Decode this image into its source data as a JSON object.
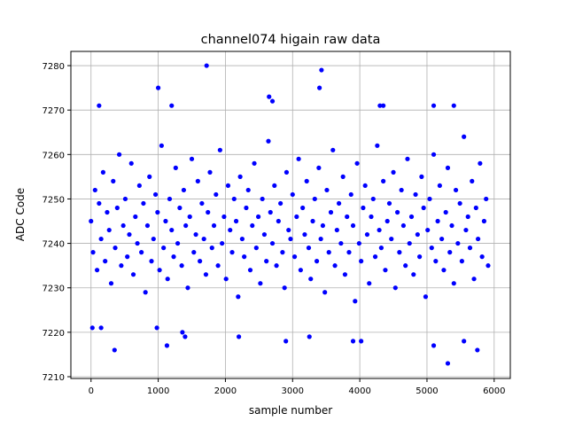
{
  "chart_data": {
    "type": "scatter",
    "title": "channel074 higain raw data",
    "xlabel": "sample number",
    "ylabel": "ADC Code",
    "xlim": [
      -300,
      6240
    ],
    "ylim": [
      7209.6,
      7283.2
    ],
    "xticks": [
      0,
      1000,
      2000,
      3000,
      4000,
      5000,
      6000
    ],
    "yticks": [
      7210,
      7220,
      7230,
      7240,
      7250,
      7260,
      7270,
      7280
    ],
    "grid": true,
    "marker_color": "#0000ff",
    "series": [
      {
        "x_start": 0,
        "x_step": 30,
        "y_values": [
          7245,
          7238,
          7252,
          7234,
          7249,
          7241,
          7256,
          7236,
          7247,
          7243,
          7231,
          7254,
          7239,
          7248,
          7260,
          7235,
          7244,
          7250,
          7237,
          7242,
          7258,
          7233,
          7246,
          7240,
          7253,
          7238,
          7249,
          7229,
          7244,
          7255,
          7236,
          7241,
          7251,
          7247,
          7234,
          7262,
          7239,
          7245,
          7232,
          7250,
          7243,
          7237,
          7257,
          7240,
          7248,
          7235,
          7252,
          7244,
          7230,
          7246,
          7259,
          7238,
          7242,
          7254,
          7236,
          7249,
          7241,
          7233,
          7247,
          7256,
          7239,
          7244,
          7251,
          7235,
          7261,
          7240,
          7246,
          7232,
          7253,
          7243,
          7238,
          7250,
          7245,
          7228,
          7255,
          7241,
          7237,
          7248,
          7252,
          7234,
          7244,
          7258,
          7239,
          7246,
          7231,
          7250,
          7242,
          7236,
          7263,
          7247,
          7240,
          7253,
          7235,
          7245,
          7249,
          7238,
          7230,
          7256,
          7243,
          7241,
          7251,
          7237,
          7246,
          7259,
          7234,
          7248,
          7242,
          7254,
          7239,
          7232,
          7245,
          7250,
          7236,
          7257,
          7241,
          7244,
          7229,
          7252,
          7238,
          7247,
          7261,
          7235,
          7243,
          7249,
          7240,
          7255,
          7233,
          7246,
          7238,
          7251,
          7244,
          7227,
          7258,
          7240,
          7236,
          7248,
          7253,
          7242,
          7231,
          7246,
          7250,
          7237,
          7262,
          7243,
          7239,
          7254,
          7234,
          7245,
          7249,
          7241,
          7256,
          7230,
          7247,
          7238,
          7252,
          7244,
          7235,
          7259,
          7240,
          7246,
          7233,
          7251,
          7242,
          7237,
          7255,
          7248,
          7228,
          7243,
          7250,
          7239,
          7260,
          7236,
          7245,
          7253,
          7241,
          7234,
          7247,
          7257,
          7238,
          7244,
          7231,
          7252,
          7240,
          7249,
          7236,
          7264,
          7243,
          7246,
          7239,
          7254,
          7232,
          7248,
          7241,
          7258,
          7237,
          7245,
          7250,
          7235
        ]
      },
      {
        "x": [
          1720,
          1000,
          3430,
          3400,
          2650,
          2700,
          120,
          1200,
          4300,
          4350,
          5100,
          5400,
          350,
          1130,
          1360,
          1400,
          2200,
          2900,
          3250,
          3900,
          4020,
          5310,
          5750,
          5550,
          5100,
          20,
          980,
          150
        ],
        "y": [
          7280,
          7275,
          7279,
          7275,
          7273,
          7272,
          7271,
          7271,
          7271,
          7271,
          7271,
          7271,
          7216,
          7217,
          7220,
          7219,
          7219,
          7218,
          7219,
          7218,
          7218,
          7213,
          7216,
          7218,
          7217,
          7221,
          7221,
          7221
        ]
      }
    ]
  }
}
